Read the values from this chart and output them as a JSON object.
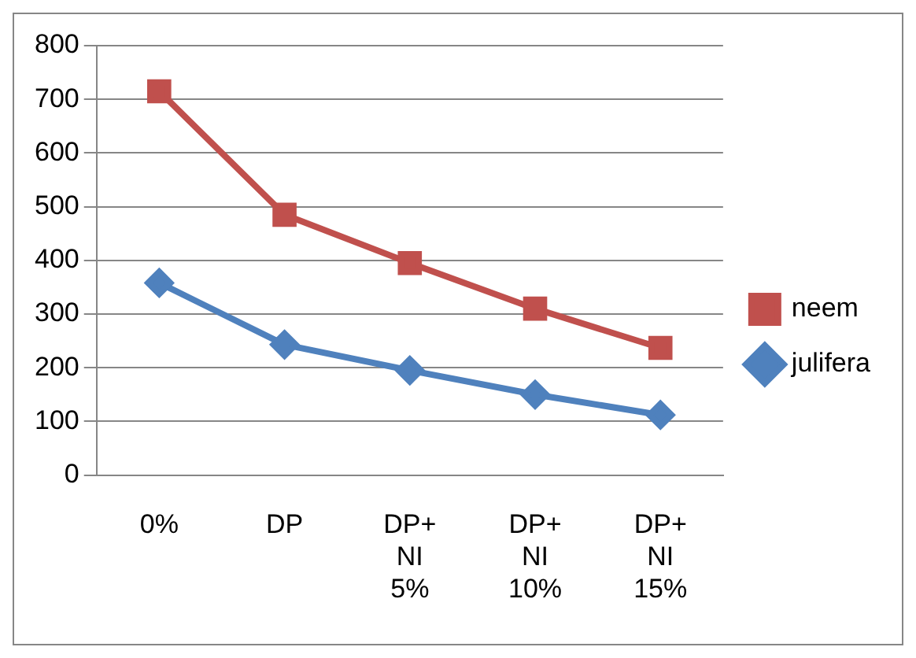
{
  "chart_data": {
    "type": "line",
    "categories": [
      "0%",
      "DP",
      "DP+ NI 5%",
      "DP+ NI 10%",
      "DP+ NI 15%"
    ],
    "series": [
      {
        "name": "neem",
        "color": "#c0504d",
        "marker": "square",
        "values": [
          715,
          485,
          395,
          310,
          237
        ]
      },
      {
        "name": "julifera",
        "color": "#4f81bd",
        "marker": "diamond",
        "values": [
          358,
          243,
          195,
          150,
          112
        ]
      }
    ],
    "ylim": [
      0,
      800
    ],
    "yticks": [
      0,
      100,
      200,
      300,
      400,
      500,
      600,
      700,
      800
    ],
    "grid": "y",
    "legend": "right"
  }
}
